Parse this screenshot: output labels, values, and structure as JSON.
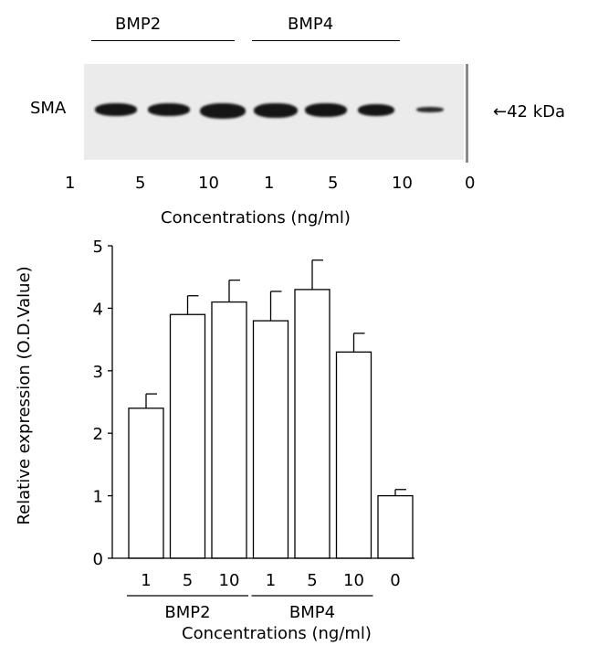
{
  "blot": {
    "groups": [
      {
        "label": "BMP2"
      },
      {
        "label": "BMP4"
      }
    ],
    "protein_label": "SMA",
    "marker_label": "42 kDa",
    "lane_labels": [
      "1",
      "5",
      "10",
      "1",
      "5",
      "10",
      "0"
    ],
    "xlabel": "Concentrations (ng/ml)"
  },
  "chart_data": {
    "type": "bar",
    "categories": [
      "1",
      "5",
      "10",
      "1",
      "5",
      "10",
      "0"
    ],
    "groups": [
      {
        "label": "BMP2",
        "categories": [
          "1",
          "5",
          "10"
        ]
      },
      {
        "label": "BMP4",
        "categories": [
          "1",
          "5",
          "10"
        ]
      }
    ],
    "values": [
      2.4,
      3.9,
      4.1,
      3.8,
      4.3,
      3.3,
      1.0
    ],
    "errors": [
      0.23,
      0.3,
      0.35,
      0.47,
      0.47,
      0.3,
      0.1
    ],
    "ylim": [
      0,
      5
    ],
    "yticks": [
      0,
      1,
      2,
      3,
      4,
      5
    ],
    "xlabel": "Concentrations (ng/ml)",
    "ylabel": "Relative expression (O.D.Value)",
    "bar_color": "#ffffff",
    "edge_color": "#000000"
  }
}
